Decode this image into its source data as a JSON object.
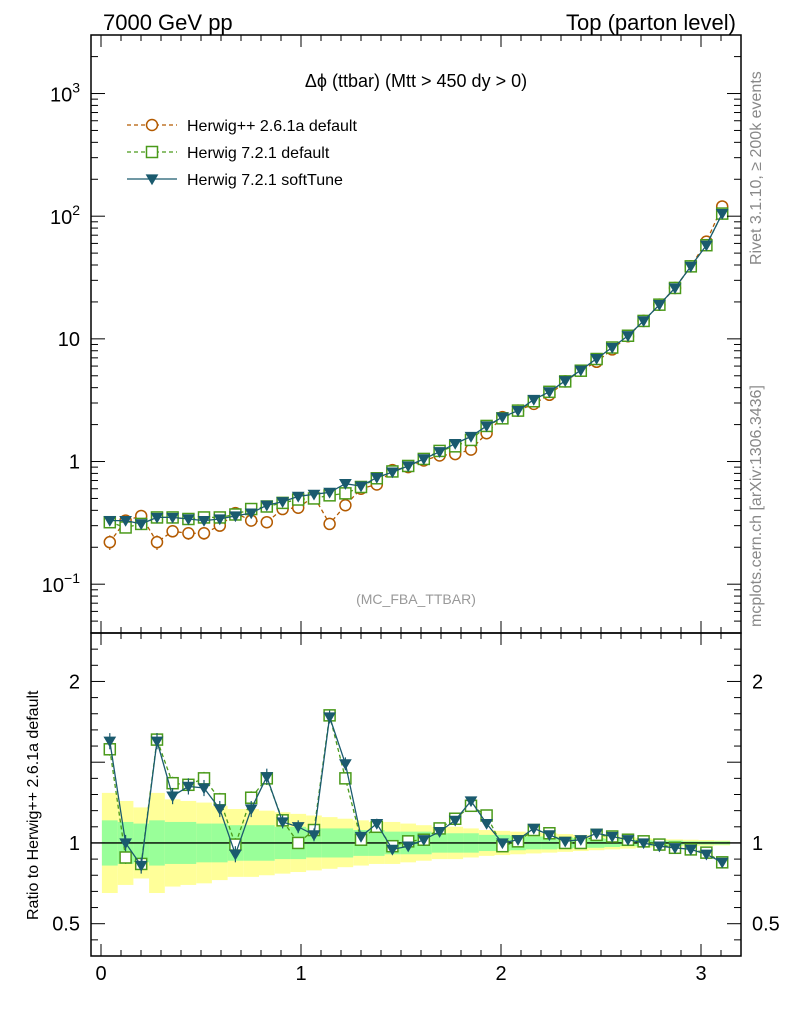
{
  "header": {
    "left": "7000 GeV pp",
    "right": "Top (parton level)"
  },
  "side_labels": {
    "rivet": "Rivet 3.1.10, ≥ 200k events",
    "mcplots": "mcplots.cern.ch [arXiv:1306.3436]"
  },
  "chart_data": {
    "type": "line",
    "title": "Δϕ (ttbar) (Mtt > 450 dy > 0)",
    "watermark": "(MC_FBA_TTBAR)",
    "ylabel_ratio": "Ratio to Herwig++ 2.6.1a default",
    "xlim": [
      -0.05,
      3.2
    ],
    "ylim_main": [
      0.04,
      3000
    ],
    "ylog_main": true,
    "ylim_ratio": [
      0.3,
      2.3
    ],
    "grid": false,
    "legend_position": "top-left",
    "x_ticks": [
      0,
      1,
      2,
      3
    ],
    "x_tick_labels": [
      "0",
      "1",
      "2",
      "3"
    ],
    "y_ticks_main": [
      {
        "value": 0.1,
        "mant": "10",
        "exp": "−1"
      },
      {
        "value": 1,
        "mant": "1",
        "exp": ""
      },
      {
        "value": 10,
        "mant": "10",
        "exp": ""
      },
      {
        "value": 100,
        "mant": "10",
        "exp": "2"
      },
      {
        "value": 1000,
        "mant": "10",
        "exp": "3"
      }
    ],
    "y_ticks_ratio": [
      {
        "value": 0.5,
        "label": "0.5"
      },
      {
        "value": 1,
        "label": "1"
      },
      {
        "value": 2,
        "label": "2"
      }
    ],
    "x": [
      0.044,
      0.123,
      0.201,
      0.28,
      0.358,
      0.437,
      0.515,
      0.594,
      0.672,
      0.751,
      0.829,
      0.908,
      0.986,
      1.065,
      1.143,
      1.222,
      1.3,
      1.379,
      1.457,
      1.536,
      1.614,
      1.693,
      1.771,
      1.85,
      1.928,
      2.007,
      2.085,
      2.164,
      2.242,
      2.321,
      2.399,
      2.478,
      2.556,
      2.635,
      2.713,
      2.792,
      2.87,
      2.949,
      3.027,
      3.106
    ],
    "series": [
      {
        "name": "Herwig++ 2.6.1a default",
        "color": "#b35a00",
        "marker": "circle",
        "dash": "4,3",
        "values": [
          0.22,
          0.33,
          0.36,
          0.22,
          0.27,
          0.26,
          0.26,
          0.3,
          0.38,
          0.33,
          0.32,
          0.41,
          0.42,
          0.52,
          0.31,
          0.44,
          0.6,
          0.65,
          0.85,
          0.9,
          1.02,
          1.12,
          1.15,
          1.25,
          1.7,
          2.3,
          2.6,
          2.95,
          3.5,
          4.5,
          5.5,
          6.5,
          8.2,
          10.5,
          14.0,
          19.0,
          26.0,
          39.0,
          62.0,
          120.0
        ],
        "errors": [
          0.03,
          0.03,
          0.03,
          0.03,
          0.03,
          0.03,
          0.03,
          0.03,
          0.03,
          0.03,
          0.03,
          0.04,
          0.04,
          0.04,
          0.03,
          0.04,
          0.04,
          0.04,
          0.05,
          0.05,
          0.05,
          0.06,
          0.06,
          0.06,
          0.08,
          0.1,
          0.1,
          0.1,
          0.1,
          0.15,
          0.2,
          0.2,
          0.25,
          0.3,
          0.4,
          0.5,
          0.6,
          0.8,
          1.2,
          2.0
        ]
      },
      {
        "name": "Herwig 7.2.1 default",
        "color": "#4a9a1a",
        "marker": "square",
        "dash": "4,3",
        "values": [
          0.32,
          0.29,
          0.31,
          0.35,
          0.35,
          0.34,
          0.35,
          0.35,
          0.37,
          0.41,
          0.43,
          0.46,
          0.49,
          0.5,
          0.53,
          0.55,
          0.62,
          0.73,
          0.83,
          0.92,
          1.05,
          1.22,
          1.33,
          1.5,
          1.95,
          2.25,
          2.6,
          3.1,
          3.7,
          4.5,
          5.5,
          6.85,
          8.5,
          10.6,
          14.0,
          19.0,
          26.0,
          39.0,
          58.0,
          105.0
        ],
        "errors": []
      },
      {
        "name": "Herwig 7.2.1 softTune",
        "color": "#1a5a6e",
        "marker": "triangle-down",
        "dash": "",
        "values": [
          0.33,
          0.33,
          0.31,
          0.35,
          0.35,
          0.34,
          0.33,
          0.34,
          0.36,
          0.38,
          0.44,
          0.47,
          0.52,
          0.54,
          0.56,
          0.66,
          0.63,
          0.74,
          0.82,
          0.92,
          1.05,
          1.2,
          1.4,
          1.6,
          1.95,
          2.3,
          2.6,
          3.2,
          3.7,
          4.55,
          5.55,
          6.9,
          8.5,
          10.6,
          14.0,
          19.0,
          26.0,
          39.0,
          58.0,
          105.0
        ],
        "errors": []
      }
    ],
    "ratios": [
      {
        "name": "Herwig 7.2.1 default",
        "values": [
          1.58,
          0.91,
          0.87,
          1.64,
          1.37,
          1.36,
          1.4,
          1.27,
          0.99,
          1.28,
          1.4,
          1.14,
          1.0,
          1.08,
          1.79,
          1.4,
          1.02,
          1.1,
          0.98,
          1.01,
          1.02,
          1.09,
          1.15,
          1.23,
          1.17,
          0.98,
          1.01,
          1.08,
          1.06,
          1.0,
          1.0,
          1.05,
          1.04,
          1.02,
          1.01,
          0.99,
          0.97,
          0.96,
          0.94,
          0.88
        ],
        "errors": [
          0.04,
          0.04,
          0.04,
          0.04,
          0.04,
          0.04,
          0.04,
          0.04,
          0.04,
          0.04,
          0.04,
          0.03,
          0.03,
          0.03,
          0.03,
          0.03,
          0.02,
          0.02,
          0.02,
          0.02,
          0.02,
          0.02,
          0.02,
          0.02,
          0.02,
          0.01,
          0.01,
          0.01,
          0.01,
          0.01,
          0.01,
          0.01,
          0.01,
          0.01,
          0.01,
          0.01,
          0.01,
          0.01,
          0.01,
          0.01
        ]
      },
      {
        "name": "Herwig 7.2.1 softTune",
        "values": [
          1.63,
          1.0,
          0.86,
          1.63,
          1.29,
          1.35,
          1.34,
          1.21,
          0.93,
          1.21,
          1.41,
          1.13,
          1.1,
          1.05,
          1.78,
          1.49,
          1.04,
          1.12,
          0.96,
          0.98,
          1.02,
          1.07,
          1.14,
          1.26,
          1.12,
          1.0,
          1.02,
          1.09,
          1.05,
          1.01,
          1.02,
          1.06,
          1.04,
          1.02,
          1.0,
          0.98,
          0.97,
          0.96,
          0.93,
          0.88
        ],
        "errors": [
          0.05,
          0.05,
          0.05,
          0.05,
          0.05,
          0.05,
          0.05,
          0.05,
          0.05,
          0.05,
          0.05,
          0.04,
          0.04,
          0.04,
          0.04,
          0.04,
          0.03,
          0.03,
          0.02,
          0.02,
          0.02,
          0.02,
          0.02,
          0.02,
          0.02,
          0.01,
          0.01,
          0.01,
          0.01,
          0.01,
          0.01,
          0.01,
          0.01,
          0.01,
          0.01,
          0.01,
          0.01,
          0.01,
          0.01,
          0.01
        ]
      }
    ],
    "reference_band": {
      "inner": [
        0.14,
        0.13,
        0.12,
        0.14,
        0.13,
        0.13,
        0.12,
        0.12,
        0.11,
        0.11,
        0.11,
        0.1,
        0.1,
        0.09,
        0.09,
        0.09,
        0.08,
        0.08,
        0.07,
        0.07,
        0.07,
        0.06,
        0.06,
        0.06,
        0.05,
        0.05,
        0.045,
        0.04,
        0.04,
        0.035,
        0.03,
        0.03,
        0.025,
        0.02,
        0.02,
        0.015,
        0.015,
        0.01,
        0.01,
        0.01
      ],
      "outer": [
        0.31,
        0.26,
        0.22,
        0.31,
        0.27,
        0.26,
        0.25,
        0.23,
        0.21,
        0.21,
        0.2,
        0.19,
        0.18,
        0.17,
        0.16,
        0.15,
        0.14,
        0.13,
        0.13,
        0.12,
        0.11,
        0.1,
        0.1,
        0.09,
        0.08,
        0.075,
        0.07,
        0.065,
        0.06,
        0.055,
        0.05,
        0.045,
        0.04,
        0.035,
        0.03,
        0.025,
        0.022,
        0.02,
        0.018,
        0.015
      ],
      "inner_color": "#99ff99",
      "outer_color": "#ffff99"
    }
  }
}
